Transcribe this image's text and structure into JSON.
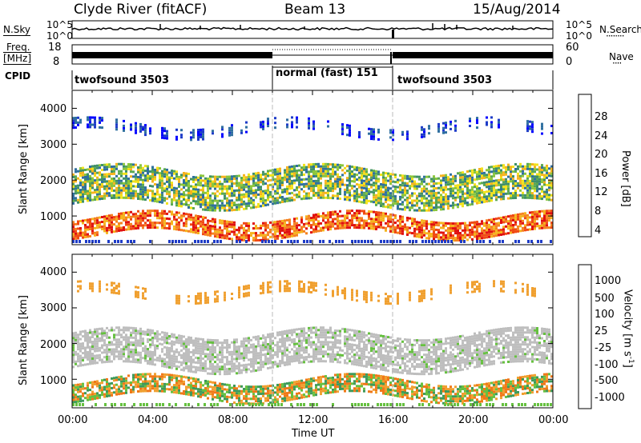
{
  "header": {
    "station": "Clyde River (fitACF)",
    "beam": "Beam 13",
    "date": "15/Aug/2014"
  },
  "noise_panel": {
    "label": "N.Sky",
    "right_label": "N.Search",
    "y_ticks_left": [
      "10^5",
      "10^0"
    ],
    "y_ticks_right": [
      "10^5",
      "10^0"
    ],
    "legend_dots": "········"
  },
  "freq_panel": {
    "label_line1": "Freq.",
    "label_line2": "[MHz]",
    "left_ticks": [
      "18",
      "8"
    ],
    "right_ticks": [
      "60",
      "0"
    ],
    "right_label": "Nave",
    "legend_dots": "····"
  },
  "cpid_panel": {
    "label": "CPID",
    "segments": [
      {
        "name": "twofsound 3503",
        "start_hour": 0,
        "end_hour": 10
      },
      {
        "name": "normal (fast) 151",
        "start_hour": 10,
        "end_hour": 16
      },
      {
        "name": "twofsound 3503",
        "start_hour": 16,
        "end_hour": 24
      }
    ]
  },
  "chart_data": [
    {
      "type": "heatmap",
      "title": "Power",
      "ylabel": "Slant Range [km]",
      "ylim": [
        200,
        4500
      ],
      "y_ticks": [
        "4000",
        "3000",
        "2000",
        "1000"
      ],
      "colorbar": {
        "label": "Power [dB]",
        "ticks": [
          "28",
          "24",
          "20",
          "16",
          "12",
          "8",
          "4"
        ],
        "colors": [
          "#0000ff",
          "#1e3cc8",
          "#2f6fa0",
          "#3f9068",
          "#5aa852",
          "#8cc63c",
          "#f2e21a",
          "#f5b41e",
          "#f58220",
          "#f04a14",
          "#e01010"
        ]
      },
      "bands_km": [
        {
          "name": "near-range",
          "range_km": [
            500,
            1000
          ],
          "dominant_power_db": 26
        },
        {
          "name": "mid-range",
          "range_km": [
            1300,
            2300
          ],
          "dominant_power_db": 16
        },
        {
          "name": "far-range",
          "range_km": [
            3300,
            3600
          ],
          "dominant_power_db": 8
        }
      ]
    },
    {
      "type": "heatmap",
      "title": "Velocity",
      "ylabel": "Slant Range [km]",
      "ylim": [
        200,
        4500
      ],
      "y_ticks": [
        "4000",
        "3000",
        "2000",
        "1000"
      ],
      "colorbar": {
        "label": "Velocity [m s",
        "label_sup": "-1",
        "label_end": "]",
        "ticks": [
          "1000",
          "500",
          "100",
          "25",
          "-25",
          "-100",
          "-500",
          "-1000"
        ],
        "colors": [
          "#2040c0",
          "#3a78a8",
          "#3e9a5a",
          "#66c040",
          "#bebebe",
          "#bebebe",
          "#f0a030",
          "#f07818",
          "#e84010",
          "#e01010"
        ]
      },
      "bands_km": [
        {
          "name": "near-range",
          "range_km": [
            500,
            1000
          ],
          "dominant_velocity": "-100"
        },
        {
          "name": "mid-range",
          "range_km": [
            1300,
            2300
          ],
          "dominant_velocity": "0"
        },
        {
          "name": "far-range",
          "range_km": [
            3300,
            3600
          ],
          "dominant_velocity": "-100"
        }
      ]
    }
  ],
  "x_axis": {
    "label": "Time UT",
    "ticks": [
      "00:00",
      "04:00",
      "08:00",
      "12:00",
      "16:00",
      "20:00",
      "00:00"
    ]
  }
}
